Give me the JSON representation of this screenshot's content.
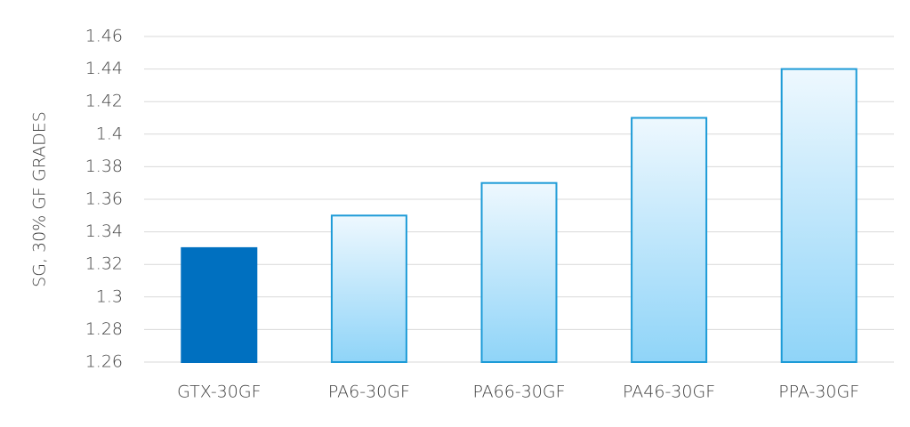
{
  "chart_data": {
    "type": "bar",
    "y_label": "SG, 30% GF GRADES",
    "categories": [
      "GTX-30GF",
      "PA6-30GF",
      "PA66-30GF",
      "PA46-30GF",
      "PPA-30GF"
    ],
    "values": [
      1.33,
      1.35,
      1.37,
      1.41,
      1.44
    ],
    "colors": [
      "#0070c0",
      "#8fd4f8",
      "#8fd4f8",
      "#8fd4f8",
      "#8fd4f8"
    ],
    "ylim": [
      1.26,
      1.46
    ],
    "yticks": [
      1.26,
      1.28,
      1.3,
      1.32,
      1.34,
      1.36,
      1.38,
      1.4,
      1.42,
      1.44,
      1.46
    ],
    "grid": true
  }
}
